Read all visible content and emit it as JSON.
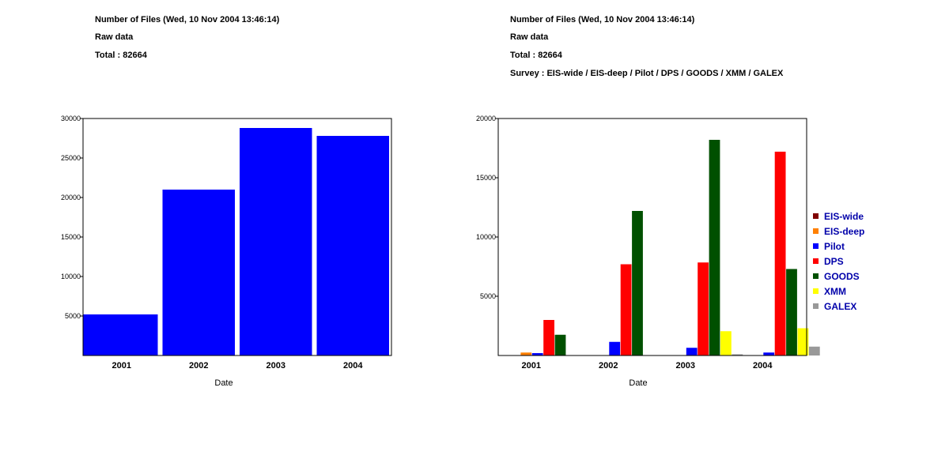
{
  "left_panel": {
    "title": "Number of Files (Wed, 10 Nov 2004 13:46:14)",
    "subtitle": "Raw data",
    "total": "Total : 82664"
  },
  "right_panel": {
    "title": "Number of Files (Wed, 10 Nov 2004 13:46:14)",
    "subtitle": "Raw data",
    "total": "Total : 82664",
    "survey": "Survey : EIS-wide / EIS-deep / Pilot / DPS / GOODS / XMM / GALEX"
  },
  "chart_data": [
    {
      "type": "bar",
      "title": "Number of Files (Wed, 10 Nov 2004 13:46:14)",
      "xlabel": "Date",
      "ylabel": "",
      "categories": [
        "2001",
        "2002",
        "2003",
        "2004"
      ],
      "values": [
        5200,
        21000,
        28800,
        27800
      ],
      "ylim": [
        0,
        30000
      ],
      "yticks": [
        5000,
        10000,
        15000,
        20000,
        25000,
        30000
      ],
      "grid": false,
      "color": "#0000ff"
    },
    {
      "type": "bar",
      "title": "Number of Files (Wed, 10 Nov 2004 13:46:14)",
      "xlabel": "Date",
      "ylabel": "",
      "categories": [
        "2001",
        "2002",
        "2003",
        "2004"
      ],
      "ylim": [
        0,
        20000
      ],
      "yticks": [
        5000,
        10000,
        15000,
        20000
      ],
      "grid": false,
      "legend_position": "right",
      "series": [
        {
          "name": "EIS-wide",
          "color": "#800000",
          "values": [
            0,
            0,
            0,
            0
          ]
        },
        {
          "name": "EIS-deep",
          "color": "#ff8000",
          "values": [
            250,
            0,
            0,
            0
          ]
        },
        {
          "name": "Pilot",
          "color": "#0000ff",
          "values": [
            200,
            1150,
            650,
            250
          ]
        },
        {
          "name": "DPS",
          "color": "#ff0000",
          "values": [
            3000,
            7700,
            7850,
            17200
          ]
        },
        {
          "name": "GOODS",
          "color": "#005000",
          "values": [
            1750,
            12200,
            18200,
            7300
          ]
        },
        {
          "name": "XMM",
          "color": "#ffff00",
          "values": [
            0,
            0,
            2050,
            2300
          ]
        },
        {
          "name": "GALEX",
          "color": "#999999",
          "values": [
            0,
            0,
            100,
            750
          ]
        }
      ]
    }
  ]
}
